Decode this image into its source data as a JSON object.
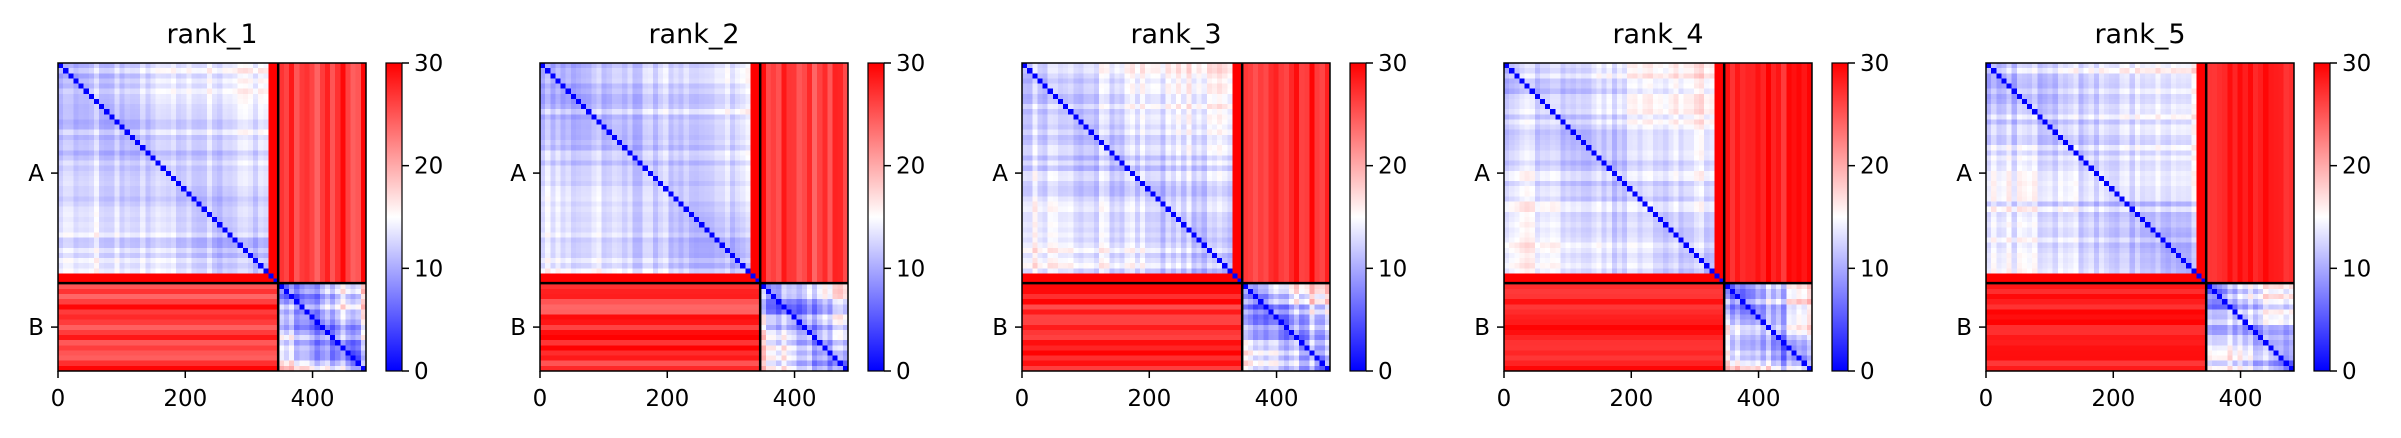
{
  "chart_data": [
    {
      "type": "heatmap",
      "title": "rank_1",
      "xlabel": "",
      "ylabel": "",
      "x_ticks": [
        0,
        200,
        400
      ],
      "xlim": [
        0,
        484
      ],
      "chains": [
        {
          "label": "A",
          "start": 0,
          "end": 346
        },
        {
          "label": "B",
          "start": 346,
          "end": 484
        }
      ],
      "colorbar": {
        "min": 0,
        "max": 30,
        "ticks": [
          0,
          10,
          20,
          30
        ],
        "colors": [
          "#0000ff",
          "#ffffff",
          "#ff0000"
        ]
      },
      "matrix_summary": {
        "intra_A_min": 8,
        "intra_A_max": 20,
        "intra_B_min": 2,
        "intra_B_max": 20,
        "inter_A_B_min": 20,
        "inter_A_B_max": 30
      }
    },
    {
      "type": "heatmap",
      "title": "rank_2",
      "xlabel": "",
      "ylabel": "",
      "x_ticks": [
        0,
        200,
        400
      ],
      "xlim": [
        0,
        484
      ],
      "chains": [
        {
          "label": "A",
          "start": 0,
          "end": 346
        },
        {
          "label": "B",
          "start": 346,
          "end": 484
        }
      ],
      "colorbar": {
        "min": 0,
        "max": 30,
        "ticks": [
          0,
          10,
          20,
          30
        ],
        "colors": [
          "#0000ff",
          "#ffffff",
          "#ff0000"
        ]
      },
      "matrix_summary": {
        "intra_A_min": 8,
        "intra_A_max": 20,
        "intra_B_min": 2,
        "intra_B_max": 20,
        "inter_A_B_min": 20,
        "inter_A_B_max": 30
      }
    },
    {
      "type": "heatmap",
      "title": "rank_3",
      "xlabel": "",
      "ylabel": "",
      "x_ticks": [
        0,
        200,
        400
      ],
      "xlim": [
        0,
        484
      ],
      "chains": [
        {
          "label": "A",
          "start": 0,
          "end": 346
        },
        {
          "label": "B",
          "start": 346,
          "end": 484
        }
      ],
      "colorbar": {
        "min": 0,
        "max": 30,
        "ticks": [
          0,
          10,
          20,
          30
        ],
        "colors": [
          "#0000ff",
          "#ffffff",
          "#ff0000"
        ]
      },
      "matrix_summary": {
        "intra_A_min": 8,
        "intra_A_max": 22,
        "intra_B_min": 2,
        "intra_B_max": 20,
        "inter_A_B_min": 22,
        "inter_A_B_max": 30
      }
    },
    {
      "type": "heatmap",
      "title": "rank_4",
      "xlabel": "",
      "ylabel": "",
      "x_ticks": [
        0,
        200,
        400
      ],
      "xlim": [
        0,
        484
      ],
      "chains": [
        {
          "label": "A",
          "start": 0,
          "end": 346
        },
        {
          "label": "B",
          "start": 346,
          "end": 484
        }
      ],
      "colorbar": {
        "min": 0,
        "max": 30,
        "ticks": [
          0,
          10,
          20,
          30
        ],
        "colors": [
          "#0000ff",
          "#ffffff",
          "#ff0000"
        ]
      },
      "matrix_summary": {
        "intra_A_min": 8,
        "intra_A_max": 22,
        "intra_B_min": 2,
        "intra_B_max": 20,
        "inter_A_B_min": 24,
        "inter_A_B_max": 30
      }
    },
    {
      "type": "heatmap",
      "title": "rank_5",
      "xlabel": "",
      "ylabel": "",
      "x_ticks": [
        0,
        200,
        400
      ],
      "xlim": [
        0,
        484
      ],
      "chains": [
        {
          "label": "A",
          "start": 0,
          "end": 346
        },
        {
          "label": "B",
          "start": 346,
          "end": 484
        }
      ],
      "colorbar": {
        "min": 0,
        "max": 30,
        "ticks": [
          0,
          10,
          20,
          30
        ],
        "colors": [
          "#0000ff",
          "#ffffff",
          "#ff0000"
        ]
      },
      "matrix_summary": {
        "intra_A_min": 8,
        "intra_A_max": 22,
        "intra_B_min": 2,
        "intra_B_max": 20,
        "inter_A_B_min": 24,
        "inter_A_B_max": 30
      }
    }
  ]
}
